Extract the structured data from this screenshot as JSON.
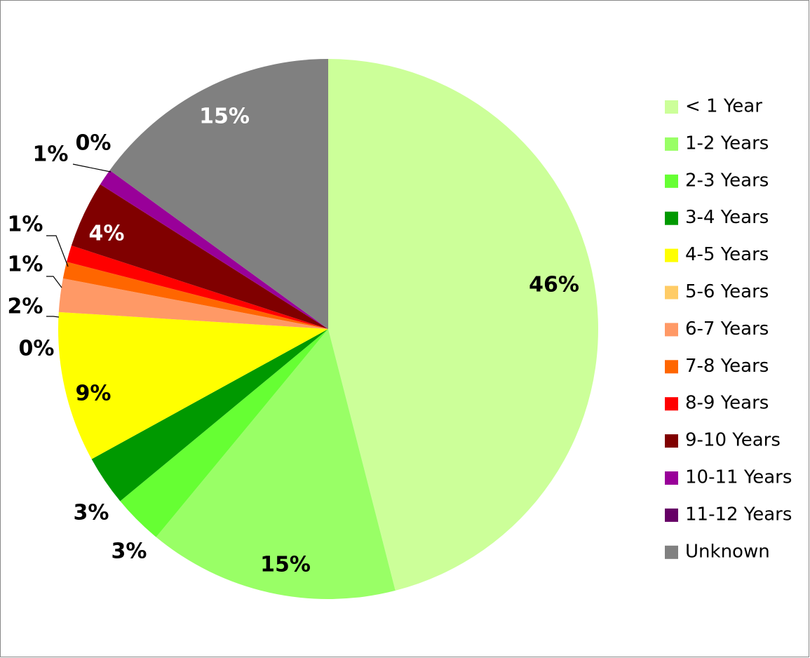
{
  "chart_data": {
    "type": "pie",
    "categories": [
      "< 1 Year",
      "1-2 Years",
      "2-3 Years",
      "3-4 Years",
      "4-5 Years",
      "5-6 Years",
      "6-7 Years",
      "7-8 Years",
      "8-9 Years",
      "9-10 Years",
      "10-11 Years",
      "11-12 Years",
      "Unknown"
    ],
    "values": [
      46,
      15,
      3,
      3,
      9,
      0,
      2,
      1,
      1,
      4,
      1,
      0,
      15
    ],
    "value_labels": [
      "46%",
      "15%",
      "3%",
      "3%",
      "9%",
      "0%",
      "2%",
      "1%",
      "1%",
      "4%",
      "1%",
      "0%",
      "15%"
    ],
    "colors": [
      "#ccff99",
      "#99ff66",
      "#66ff33",
      "#009900",
      "#ffff00",
      "#ffcc66",
      "#ff9966",
      "#ff6600",
      "#ff0000",
      "#800000",
      "#990099",
      "#660066",
      "#808080"
    ],
    "legend": "right"
  }
}
